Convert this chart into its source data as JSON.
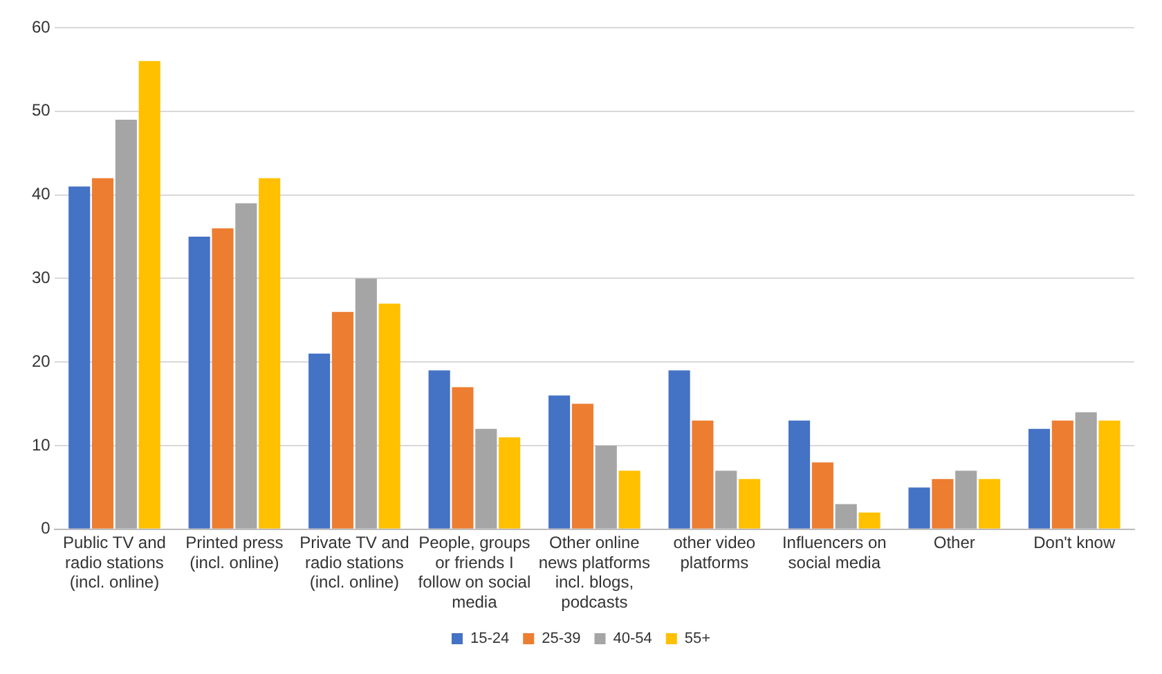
{
  "chart_data": {
    "type": "bar",
    "categories": [
      "Public TV and radio stations (incl. online)",
      "Printed press (incl. online)",
      "Private TV and radio stations (incl. online)",
      "People, groups or friends I follow on social media",
      "Other online news platforms incl. blogs, podcasts",
      "other video platforms",
      "Influencers on social media",
      "Other",
      "Don't know"
    ],
    "series": [
      {
        "name": "15-24",
        "color": "#4472c4",
        "values": [
          41,
          35,
          21,
          19,
          16,
          19,
          13,
          5,
          12
        ]
      },
      {
        "name": "25-39",
        "color": "#ed7d31",
        "values": [
          42,
          36,
          26,
          17,
          15,
          13,
          8,
          6,
          13
        ]
      },
      {
        "name": "40-54",
        "color": "#a5a5a5",
        "values": [
          49,
          39,
          30,
          12,
          10,
          7,
          3,
          7,
          14
        ]
      },
      {
        "name": "55+",
        "color": "#ffc000",
        "values": [
          56,
          42,
          27,
          11,
          7,
          6,
          2,
          6,
          13
        ]
      }
    ],
    "ylim": [
      0,
      60
    ],
    "yticks": [
      0,
      10,
      20,
      30,
      40,
      50,
      60
    ],
    "grid": "y",
    "legend": "bottom"
  }
}
